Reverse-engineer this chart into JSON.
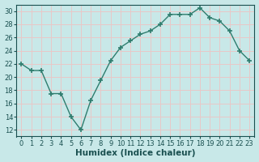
{
  "x": [
    0,
    1,
    2,
    3,
    4,
    5,
    6,
    7,
    8,
    9,
    10,
    11,
    12,
    13,
    14,
    15,
    16,
    17,
    18,
    19,
    20,
    21,
    22,
    23
  ],
  "y": [
    22,
    21,
    21,
    17.5,
    17.5,
    14,
    12,
    16.5,
    19.5,
    22.5,
    24.5,
    25.5,
    26.5,
    27,
    28,
    29.5,
    29.5,
    29.5,
    30.5,
    29,
    28.5,
    27,
    24,
    22.5
  ],
  "line_color": "#2e7d6e",
  "marker": "+",
  "marker_size": 4,
  "bg_color": "#c8e8e8",
  "grid_color": "#e8c8c8",
  "xlabel": "Humidex (Indice chaleur)",
  "ylabel": "",
  "xlim": [
    -0.5,
    23.5
  ],
  "ylim": [
    11,
    31
  ],
  "yticks": [
    12,
    14,
    16,
    18,
    20,
    22,
    24,
    26,
    28,
    30
  ],
  "xtick_labels": [
    "0",
    "1",
    "2",
    "3",
    "4",
    "5",
    "6",
    "7",
    "8",
    "9",
    "10",
    "11",
    "12",
    "13",
    "14",
    "15",
    "16",
    "17",
    "18",
    "19",
    "20",
    "21",
    "22",
    "23"
  ],
  "font_color": "#1a5050",
  "label_fontsize": 7.5,
  "tick_fontsize": 6,
  "line_width": 1.0,
  "marker_edge_width": 1.2
}
